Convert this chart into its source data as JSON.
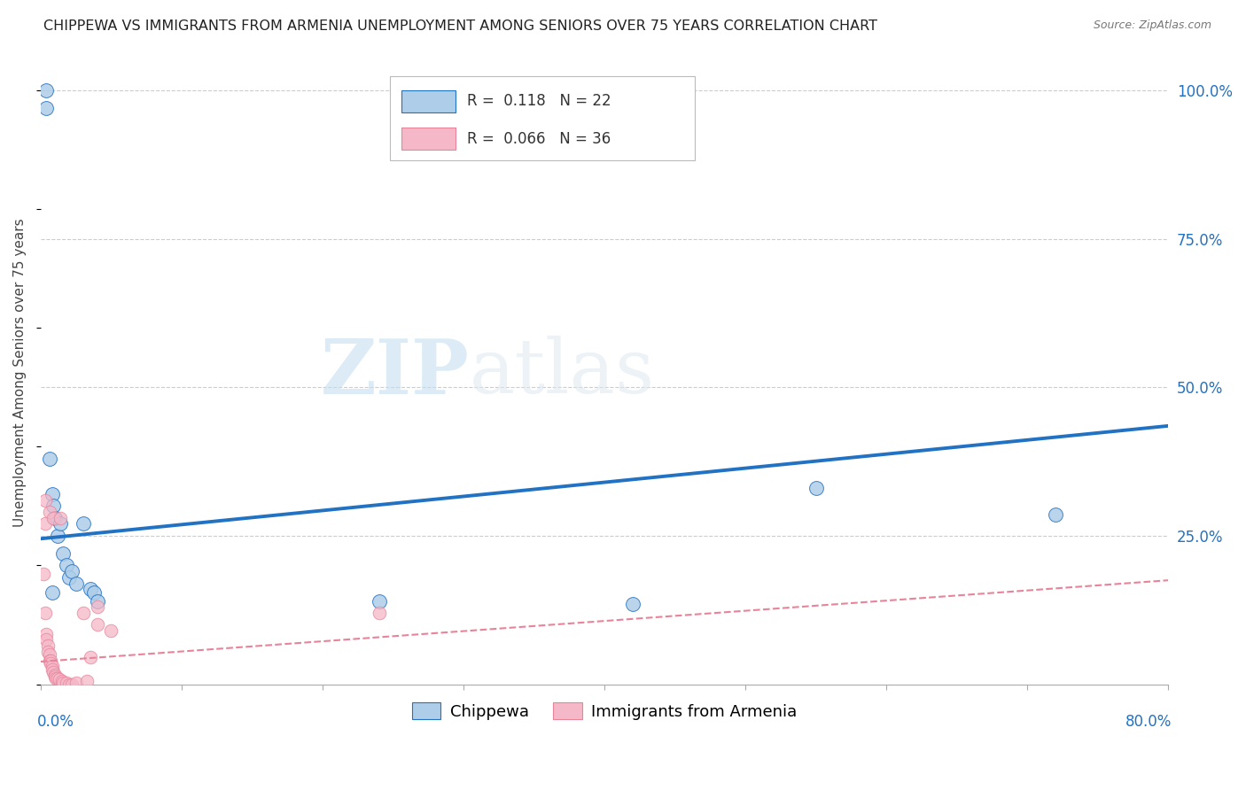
{
  "title": "CHIPPEWA VS IMMIGRANTS FROM ARMENIA UNEMPLOYMENT AMONG SENIORS OVER 75 YEARS CORRELATION CHART",
  "source": "Source: ZipAtlas.com",
  "ylabel": "Unemployment Among Seniors over 75 years",
  "legend_label1": "Chippewa",
  "legend_label2": "Immigrants from Armenia",
  "R1": 0.118,
  "N1": 22,
  "R2": 0.066,
  "N2": 36,
  "watermark_zip": "ZIP",
  "watermark_atlas": "atlas",
  "chippewa_color": "#aecde8",
  "armenia_color": "#f5b8c8",
  "line1_color": "#2272c3",
  "line2_color": "#e8849a",
  "chippewa_x": [
    0.004,
    0.004,
    0.006,
    0.008,
    0.009,
    0.01,
    0.012,
    0.014,
    0.016,
    0.018,
    0.02,
    0.022,
    0.025,
    0.03,
    0.035,
    0.038,
    0.04,
    0.24,
    0.42,
    0.55,
    0.72,
    0.008
  ],
  "chippewa_y": [
    1.0,
    0.97,
    0.38,
    0.32,
    0.3,
    0.28,
    0.25,
    0.27,
    0.22,
    0.2,
    0.18,
    0.19,
    0.17,
    0.27,
    0.16,
    0.155,
    0.14,
    0.14,
    0.135,
    0.33,
    0.285,
    0.155
  ],
  "armenia_x": [
    0.002,
    0.003,
    0.003,
    0.004,
    0.004,
    0.005,
    0.005,
    0.006,
    0.006,
    0.007,
    0.007,
    0.008,
    0.008,
    0.009,
    0.01,
    0.01,
    0.011,
    0.012,
    0.013,
    0.015,
    0.016,
    0.018,
    0.02,
    0.022,
    0.025,
    0.03,
    0.033,
    0.035,
    0.04,
    0.04,
    0.05,
    0.24,
    0.003,
    0.006,
    0.009,
    0.014
  ],
  "armenia_y": [
    0.185,
    0.12,
    0.27,
    0.085,
    0.075,
    0.065,
    0.055,
    0.05,
    0.04,
    0.04,
    0.035,
    0.03,
    0.025,
    0.02,
    0.015,
    0.012,
    0.01,
    0.01,
    0.008,
    0.005,
    0.003,
    0.002,
    0.0,
    0.0,
    0.002,
    0.12,
    0.005,
    0.045,
    0.13,
    0.1,
    0.09,
    0.12,
    0.31,
    0.29,
    0.28,
    0.28
  ],
  "line1_x0": 0.0,
  "line1_y0": 0.245,
  "line1_x1": 0.8,
  "line1_y1": 0.435,
  "line2_x0": 0.0,
  "line2_y0": 0.038,
  "line2_x1": 0.8,
  "line2_y1": 0.175,
  "xlim": [
    0.0,
    0.8
  ],
  "ylim": [
    0.0,
    1.05
  ],
  "ytick_positions": [
    0.25,
    0.5,
    0.75,
    1.0
  ],
  "ytick_labels": [
    "25.0%",
    "50.0%",
    "75.0%",
    "100.0%"
  ]
}
